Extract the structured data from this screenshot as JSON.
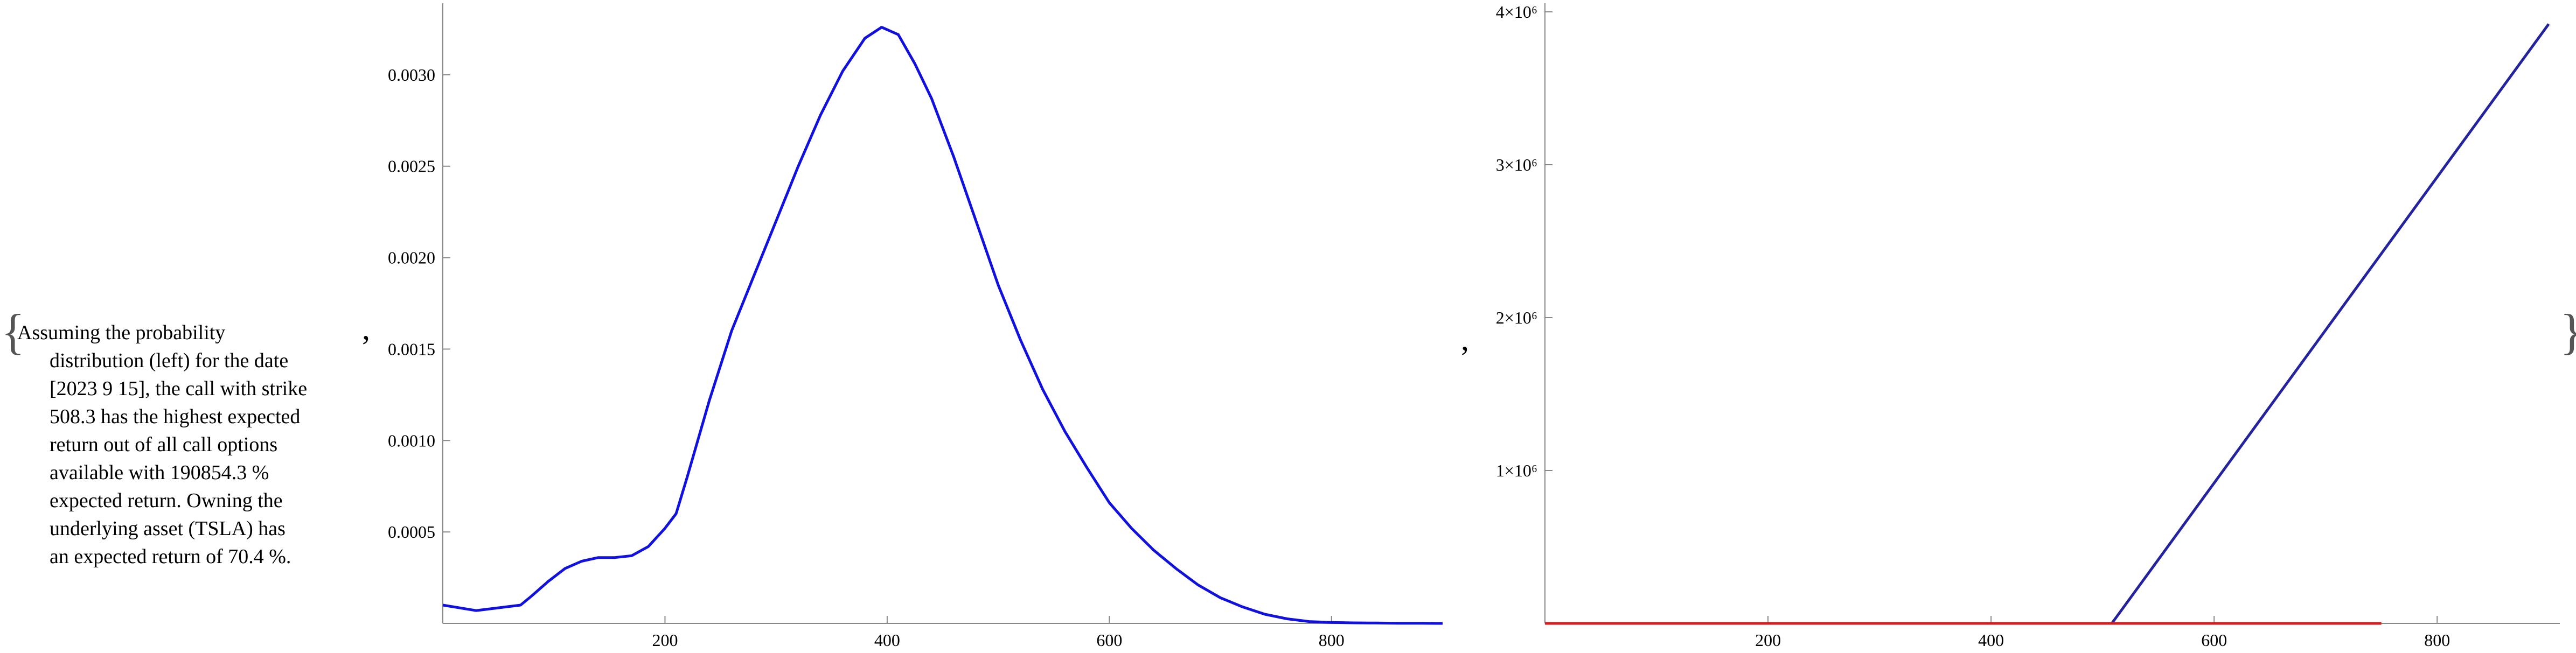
{
  "output": {
    "open_brace": "{",
    "close_brace": "}",
    "separator": ",",
    "description_lines": [
      "Assuming the probability",
      "distribution (left) for the date",
      "[2023 9 15], the call with strike",
      "508.3 has the highest expected",
      "return out of all call options",
      "available with 190854.3 %",
      "expected return. Owning the",
      "underlying asset (TSLA) has",
      "an expected return of 70.4 %."
    ]
  },
  "chart_data": [
    {
      "type": "line",
      "title": "",
      "xlabel": "",
      "ylabel": "",
      "xlim": [
        0,
        900
      ],
      "ylim": [
        0,
        0.00335
      ],
      "x_ticks": [
        200,
        400,
        600,
        800
      ],
      "x_tick_labels": [
        "200",
        "400",
        "600",
        "800"
      ],
      "y_ticks": [
        0.0005,
        0.001,
        0.0015,
        0.002,
        0.0025,
        0.003
      ],
      "y_tick_labels": [
        "0.0005",
        "0.0010",
        "0.0015",
        "0.0020",
        "0.0025",
        "0.0030"
      ],
      "grid": false,
      "series": [
        {
          "color": "#1010e0",
          "x": [
            0,
            30,
            70,
            80,
            95,
            110,
            125,
            140,
            155,
            170,
            185,
            200,
            210,
            220,
            240,
            260,
            280,
            300,
            320,
            340,
            360,
            380,
            395,
            410,
            425,
            440,
            460,
            480,
            500,
            520,
            540,
            560,
            580,
            600,
            620,
            640,
            660,
            680,
            700,
            720,
            740,
            760,
            780,
            800,
            820,
            840,
            860,
            880,
            900
          ],
          "y": [
            0.0001,
            7e-05,
            0.0001,
            0.00015,
            0.00023,
            0.0003,
            0.00034,
            0.00036,
            0.00036,
            0.00037,
            0.00042,
            0.00052,
            0.0006,
            0.0008,
            0.00122,
            0.0016,
            0.0019,
            0.0022,
            0.0025,
            0.00278,
            0.00302,
            0.0032,
            0.00326,
            0.00322,
            0.00306,
            0.00287,
            0.00255,
            0.0022,
            0.00185,
            0.00155,
            0.00128,
            0.00105,
            0.00085,
            0.00066,
            0.00052,
            0.0004,
            0.0003,
            0.00021,
            0.00014,
            9e-05,
            5e-05,
            2.5e-05,
            1e-05,
            5e-06,
            3e-06,
            2e-06,
            1e-06,
            5e-07,
            0
          ]
        }
      ]
    },
    {
      "type": "line",
      "title": "",
      "xlabel": "",
      "ylabel": "",
      "xlim": [
        0,
        910
      ],
      "ylim": [
        0,
        4000000
      ],
      "x_ticks": [
        200,
        400,
        600,
        800
      ],
      "x_tick_labels": [
        "200",
        "400",
        "600",
        "800"
      ],
      "y_ticks": [
        1000000,
        2000000,
        3000000,
        4000000
      ],
      "y_tick_labels": [
        "1×10⁶",
        "2×10⁶",
        "3×10⁶",
        "4×10⁶"
      ],
      "grid": false,
      "series": [
        {
          "color": "#2323a0",
          "x": [
            0,
            508.3,
            900
          ],
          "y": [
            0,
            0,
            3920000
          ]
        },
        {
          "color": "#d21e1e",
          "x": [
            0,
            750
          ],
          "y": [
            0,
            0
          ]
        }
      ]
    }
  ]
}
